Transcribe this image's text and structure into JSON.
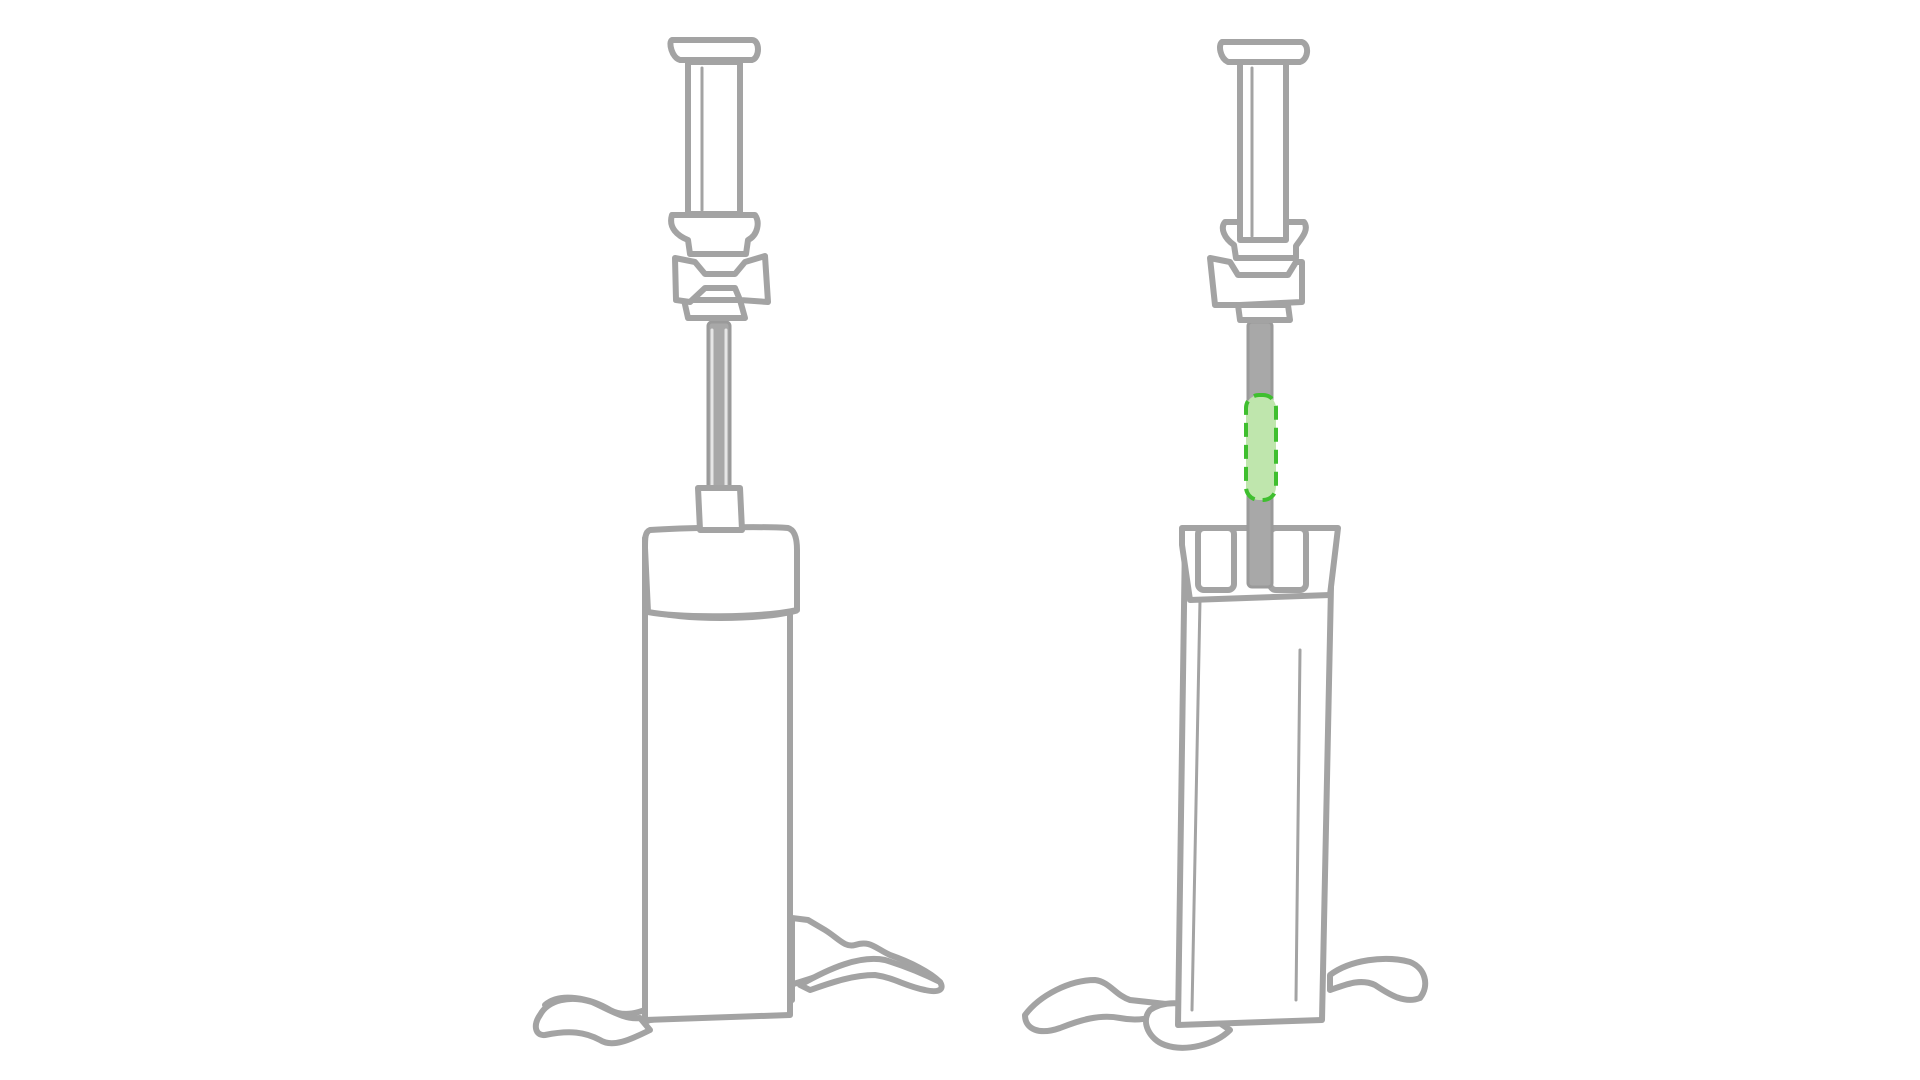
{
  "canvas": {
    "background": "#ffffff"
  },
  "products": [
    {
      "name": "pump-front-view",
      "outline_color": "#a3a3a3"
    },
    {
      "name": "pump-side-view",
      "outline_color": "#a3a3a3",
      "print_area": {
        "fill": "#bfe6ad",
        "stroke": "#3fbf2f",
        "style": "dashed"
      }
    }
  ]
}
